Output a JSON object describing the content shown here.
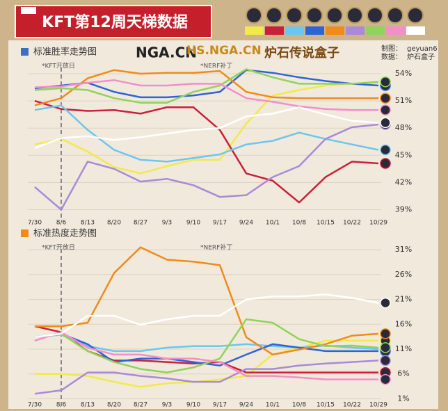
{
  "header": {
    "title": "KFT第12周天梯数据",
    "logos": [
      "NGA.CN",
      "HS.NGA.CN",
      "炉石传说盒子"
    ],
    "credits": [
      "制图：",
      "geyuan6",
      "数据：",
      "炉石盒子"
    ]
  },
  "chart_data": [
    {
      "type": "line",
      "title": "标准胜率走势图",
      "title_color": "#3a6fc4",
      "categories": [
        "7/30",
        "8/6",
        "8/13",
        "8/20",
        "8/27",
        "9/3",
        "9/10",
        "9/17",
        "9/24",
        "10/1",
        "10/8",
        "10/15",
        "10/22",
        "10/29"
      ],
      "ylim": [
        38.5,
        55
      ],
      "grid": true,
      "yticks": [
        {
          "value": 39,
          "label": "39%"
        },
        {
          "value": 42,
          "label": "42%"
        },
        {
          "value": 45,
          "label": "45%"
        },
        {
          "value": 48,
          "label": "48%"
        },
        {
          "value": 51,
          "label": "51%"
        },
        {
          "value": 54,
          "label": "54%"
        }
      ],
      "annotations": [
        {
          "label": "*KFT开放日",
          "at": "8/6"
        },
        {
          "label": "*NERF补丁",
          "at": "9/17"
        }
      ],
      "series": [
        {
          "color": "#f2e94a",
          "values": [
            46.2,
            46.8,
            45.4,
            43.7,
            43,
            43.8,
            44.5,
            44.5,
            48.5,
            51.6,
            52.2,
            52.7,
            52.9,
            53
          ]
        },
        {
          "color": "#c8203a",
          "values": [
            51,
            50.1,
            49.9,
            50,
            49.6,
            50.3,
            50.3,
            47.8,
            43,
            42.2,
            39.8,
            42.6,
            44.3,
            44.1
          ]
        },
        {
          "color": "#6cc6ee",
          "values": [
            50,
            50.5,
            47.8,
            45.6,
            44.5,
            44.3,
            44.7,
            45.1,
            46.2,
            46.6,
            47.5,
            46.8,
            46.2,
            45.6
          ]
        },
        {
          "color": "#2e63d8",
          "values": [
            52.4,
            52.7,
            53,
            52,
            51.4,
            51.4,
            51.6,
            52,
            54.4,
            54.1,
            53.6,
            53.2,
            52.9,
            52.7
          ]
        },
        {
          "color": "#f08a1c",
          "values": [
            50.5,
            51.3,
            53.5,
            54.4,
            54,
            54.1,
            54.1,
            54.3,
            52,
            51.4,
            51.3,
            51.3,
            51.3,
            51.3
          ]
        },
        {
          "color": "#a88ad8",
          "values": [
            41.5,
            39,
            44.3,
            43.5,
            42.1,
            42.4,
            41.7,
            40.4,
            40.6,
            42.6,
            43.8,
            46.8,
            48.1,
            48.4
          ]
        },
        {
          "color": "#8fd35a",
          "values": [
            52.2,
            52.4,
            52.2,
            51.3,
            50.8,
            50.8,
            52,
            52.7,
            54.5,
            53.6,
            52.9,
            52.9,
            52.9,
            53.1
          ]
        },
        {
          "color": "#f28ec8",
          "values": [
            52.5,
            52.6,
            53,
            53.3,
            52.7,
            52.7,
            52.9,
            52.9,
            51.3,
            50.9,
            50.4,
            50.1,
            50,
            50
          ]
        },
        {
          "color": "#ffffff",
          "values": [
            45.8,
            46.9,
            47.1,
            46.7,
            47,
            47.4,
            47.8,
            48,
            49.3,
            49.6,
            50.3,
            49.5,
            48.8,
            48.6
          ]
        }
      ]
    },
    {
      "type": "line",
      "title": "标准热度走势图",
      "title_color": "#f08a1c",
      "categories": [
        "7/30",
        "8/6",
        "8/13",
        "8/20",
        "8/27",
        "9/3",
        "9/10",
        "9/17",
        "9/24",
        "10/1",
        "10/8",
        "10/15",
        "10/22",
        "10/29"
      ],
      "ylim": [
        0.5,
        32
      ],
      "grid": true,
      "yticks": [
        {
          "value": 1,
          "label": "1%"
        },
        {
          "value": 6,
          "label": "6%"
        },
        {
          "value": 11,
          "label": "11%"
        },
        {
          "value": 16,
          "label": "16%"
        },
        {
          "value": 21,
          "label": "21%"
        },
        {
          "value": 26,
          "label": "26%"
        },
        {
          "value": 31,
          "label": "31%"
        }
      ],
      "annotations": [
        {
          "label": "*KFT开放日",
          "at": "8/6"
        },
        {
          "label": "*NERF补丁",
          "at": "9/17"
        }
      ],
      "series": [
        {
          "color": "#f2e94a",
          "values": [
            6,
            6,
            5.6,
            4.4,
            3.4,
            4.1,
            4.4,
            4.9,
            5.6,
            9.9,
            11.3,
            12.7,
            12.7,
            12.7
          ]
        },
        {
          "color": "#c8203a",
          "values": [
            15.6,
            14.4,
            10.6,
            8.7,
            8.7,
            8.4,
            8.1,
            8.4,
            6.3,
            6.3,
            6.3,
            6.3,
            6.3,
            6.3
          ]
        },
        {
          "color": "#6cc6ee",
          "values": [
            13.4,
            13.9,
            11.6,
            10.6,
            10.6,
            11.3,
            11.6,
            11.6,
            12,
            11.6,
            11.3,
            11.7,
            11.3,
            11
          ]
        },
        {
          "color": "#2e63d8",
          "values": [
            13.4,
            14.1,
            12,
            8.4,
            9.1,
            9.1,
            8.4,
            7.7,
            9.9,
            12,
            11.3,
            10.6,
            10.6,
            10.6
          ]
        },
        {
          "color": "#f08a1c",
          "values": [
            15.6,
            15.6,
            16.3,
            26.3,
            31.5,
            29,
            28.6,
            27.9,
            13.4,
            9.9,
            10.9,
            12,
            13.7,
            14.1
          ]
        },
        {
          "color": "#a88ad8",
          "values": [
            2,
            2.7,
            6.3,
            6.3,
            5.6,
            5.1,
            4.4,
            4.4,
            7,
            7,
            7.7,
            8.1,
            8.4,
            8.7
          ]
        },
        {
          "color": "#8fd35a",
          "values": [
            13.4,
            14.1,
            10.6,
            8.4,
            7,
            6.3,
            7.3,
            9.1,
            17,
            16.3,
            13,
            11.6,
            11.7,
            11.3
          ]
        },
        {
          "color": "#f28ec8",
          "values": [
            12.7,
            14.4,
            11.3,
            9.9,
            9.9,
            9.1,
            9.1,
            8.4,
            5.6,
            5.6,
            5.3,
            4.9,
            4.9,
            4.9
          ]
        },
        {
          "color": "#ffffff",
          "values": [
            13.4,
            14.1,
            17.7,
            17.7,
            15.9,
            17,
            17.7,
            17.7,
            21,
            21.6,
            21.6,
            22,
            21.3,
            20.3
          ]
        }
      ]
    }
  ]
}
